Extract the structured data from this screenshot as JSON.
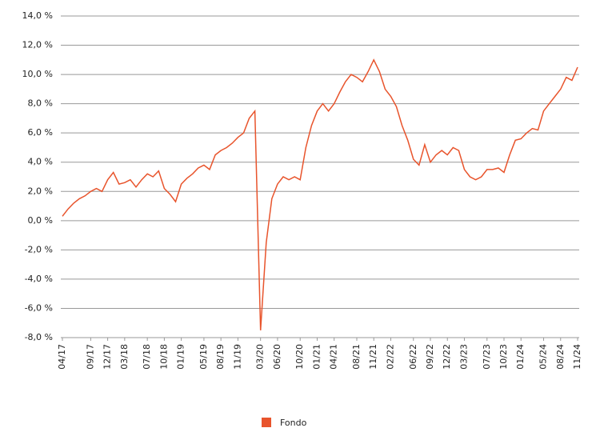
{
  "chart_data": {
    "type": "line",
    "x": [
      "04/17",
      "05/17",
      "06/17",
      "07/17",
      "08/17",
      "09/17",
      "10/17",
      "11/17",
      "12/17",
      "01/18",
      "02/18",
      "03/18",
      "04/18",
      "05/18",
      "06/18",
      "07/18",
      "08/18",
      "09/18",
      "10/18",
      "11/18",
      "12/18",
      "01/19",
      "02/19",
      "03/19",
      "04/19",
      "05/19",
      "06/19",
      "07/19",
      "08/19",
      "09/19",
      "10/19",
      "11/19",
      "12/19",
      "01/20",
      "02/20",
      "03/20",
      "04/20",
      "05/20",
      "06/20",
      "07/20",
      "08/20",
      "09/20",
      "10/20",
      "11/20",
      "12/20",
      "01/21",
      "02/21",
      "03/21",
      "04/21",
      "05/21",
      "06/21",
      "07/21",
      "08/21",
      "09/21",
      "10/21",
      "11/21",
      "12/21",
      "01/22",
      "02/22",
      "03/22",
      "04/22",
      "05/22",
      "06/22",
      "07/22",
      "08/22",
      "09/22",
      "10/22",
      "11/22",
      "12/22",
      "01/23",
      "02/23",
      "03/23",
      "04/23",
      "05/23",
      "06/23",
      "07/23",
      "08/23",
      "09/23",
      "10/23",
      "11/23",
      "12/23",
      "01/24",
      "02/24",
      "03/24",
      "04/24",
      "05/24",
      "06/24",
      "07/24",
      "08/24",
      "09/24",
      "10/24",
      "11/24"
    ],
    "series": [
      {
        "name": "Fondo",
        "color": "#e8542c",
        "values": [
          0.3,
          0.8,
          1.2,
          1.5,
          1.7,
          2.0,
          2.2,
          2.0,
          2.8,
          3.3,
          2.5,
          2.6,
          2.8,
          2.3,
          2.8,
          3.2,
          3.0,
          3.4,
          2.2,
          1.8,
          1.3,
          2.5,
          2.9,
          3.2,
          3.6,
          3.8,
          3.5,
          4.5,
          4.8,
          5.0,
          5.3,
          5.7,
          6.0,
          7.0,
          7.5,
          -7.5,
          -1.5,
          1.5,
          2.5,
          3.0,
          2.8,
          3.0,
          2.8,
          5.0,
          6.5,
          7.5,
          8.0,
          7.5,
          8.0,
          8.8,
          9.5,
          10.0,
          9.8,
          9.5,
          10.2,
          11.0,
          10.2,
          9.0,
          8.5,
          7.8,
          6.5,
          5.5,
          4.2,
          3.8,
          5.2,
          4.0,
          4.5,
          4.8,
          4.5,
          5.0,
          4.8,
          3.5,
          3.0,
          2.8,
          3.0,
          3.5,
          3.5,
          3.6,
          3.3,
          4.5,
          5.5,
          5.6,
          6.0,
          6.3,
          6.2,
          7.5,
          8.0,
          8.5,
          9.0,
          9.8,
          9.6,
          10.5
        ]
      }
    ],
    "xticks": [
      "04/17",
      "09/17",
      "12/17",
      "03/18",
      "07/18",
      "10/18",
      "01/19",
      "05/19",
      "08/19",
      "11/19",
      "03/20",
      "06/20",
      "10/20",
      "01/21",
      "04/21",
      "08/21",
      "11/21",
      "02/22",
      "06/22",
      "09/22",
      "12/22",
      "03/23",
      "07/23",
      "10/23",
      "01/24",
      "05/24",
      "08/24",
      "11/24"
    ],
    "ylim": [
      -8,
      14
    ],
    "yticks": [
      {
        "value": -8,
        "label": "-8,0 %"
      },
      {
        "value": -6,
        "label": "-6,0 %"
      },
      {
        "value": -4,
        "label": "-4,0 %"
      },
      {
        "value": -2,
        "label": "-2,0 %"
      },
      {
        "value": 0,
        "label": "0,0 %"
      },
      {
        "value": 2,
        "label": "2,0 %"
      },
      {
        "value": 4,
        "label": "4,0 %"
      },
      {
        "value": 6,
        "label": "6,0 %"
      },
      {
        "value": 8,
        "label": "8,0 %"
      },
      {
        "value": 10,
        "label": "10,0 %"
      },
      {
        "value": 12,
        "label": "12,0 %"
      },
      {
        "value": 14,
        "label": "14,0 %"
      }
    ],
    "grid": true
  }
}
